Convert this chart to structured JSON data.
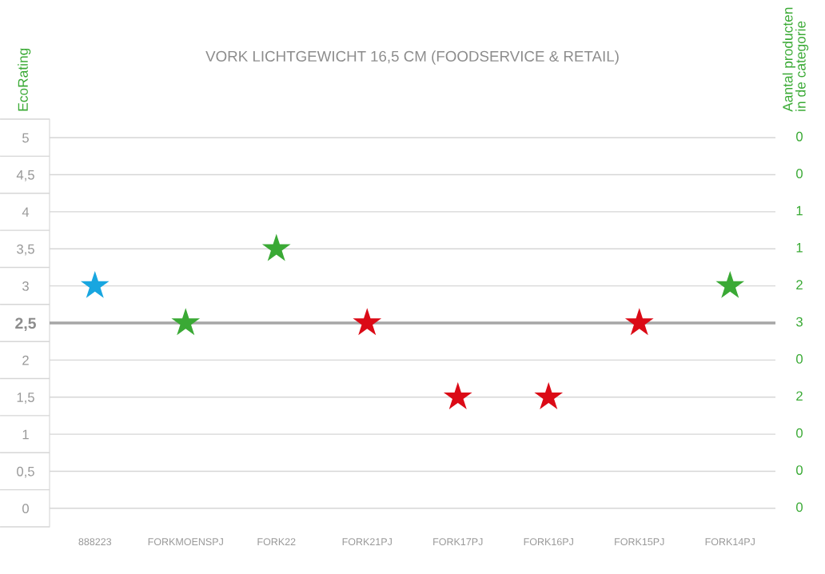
{
  "chart_data": {
    "type": "scatter",
    "title": "VORK LICHTGEWICHT 16,5 CM (FOODSERVICE & RETAIL)",
    "ylabel": "EcoRating",
    "y2label": "Aantal producten\nin de categorie",
    "categories": [
      "888223",
      "FORKMOENSPJ",
      "FORK22",
      "FORK21PJ",
      "FORK17PJ",
      "FORK16PJ",
      "FORK15PJ",
      "FORK14PJ"
    ],
    "values": [
      3,
      2.5,
      3.5,
      2.5,
      1.5,
      1.5,
      2.5,
      3
    ],
    "colors": [
      "#18a6e0",
      "#3aa935",
      "#3aa935",
      "#db0a16",
      "#db0a16",
      "#db0a16",
      "#db0a16",
      "#3aa935"
    ],
    "marker": "star",
    "grid": "y",
    "ylim": [
      -0.25,
      5.25
    ],
    "yticks": [
      0,
      {
        "value": 0.5,
        "label": "0,5"
      },
      1,
      {
        "value": 1.5,
        "label": "1,5"
      },
      2,
      {
        "value": 2.5,
        "label": "2,5"
      },
      3,
      {
        "value": 3.5,
        "label": "3,5"
      },
      4,
      {
        "value": 4.5,
        "label": "4,5"
      },
      5
    ],
    "annotations": [
      "0",
      "0",
      "1",
      "1",
      "2",
      "3",
      "0",
      "2",
      "0",
      "0",
      "0"
    ],
    "ref_lines": [
      {
        "axis": "y",
        "value": 2.5,
        "color": "#a6a6a6"
      }
    ]
  }
}
